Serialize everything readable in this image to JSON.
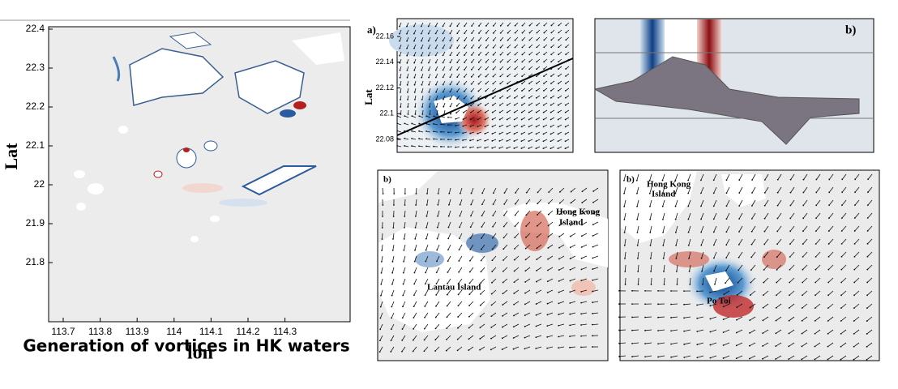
{
  "left_panel": {
    "xticks": [
      113.7,
      113.8,
      113.9,
      114,
      114.1,
      114.2,
      114.3
    ],
    "yticks": [
      22.4,
      22.3,
      22.2,
      22.1,
      22,
      21.9,
      21.8
    ],
    "xlabel": "lon",
    "ylabel": "Lat",
    "caption": "Generation of vortices in HK waters"
  },
  "panel_a": {
    "label": "a)",
    "ylabel": "Lat",
    "yticks": [
      22.16,
      22.14,
      22.12,
      22.1,
      22.08
    ]
  },
  "panel_b_section": {
    "label": "b)"
  },
  "panel_b_lantau": {
    "label": "b)",
    "place_1": [
      "Hong Kong",
      "Island"
    ],
    "place_2": "Lantau Island"
  },
  "panel_b_potoi": {
    "label": "b)",
    "place_1": [
      "Hong Kong",
      "Island"
    ],
    "place_2": "Po Toi"
  }
}
